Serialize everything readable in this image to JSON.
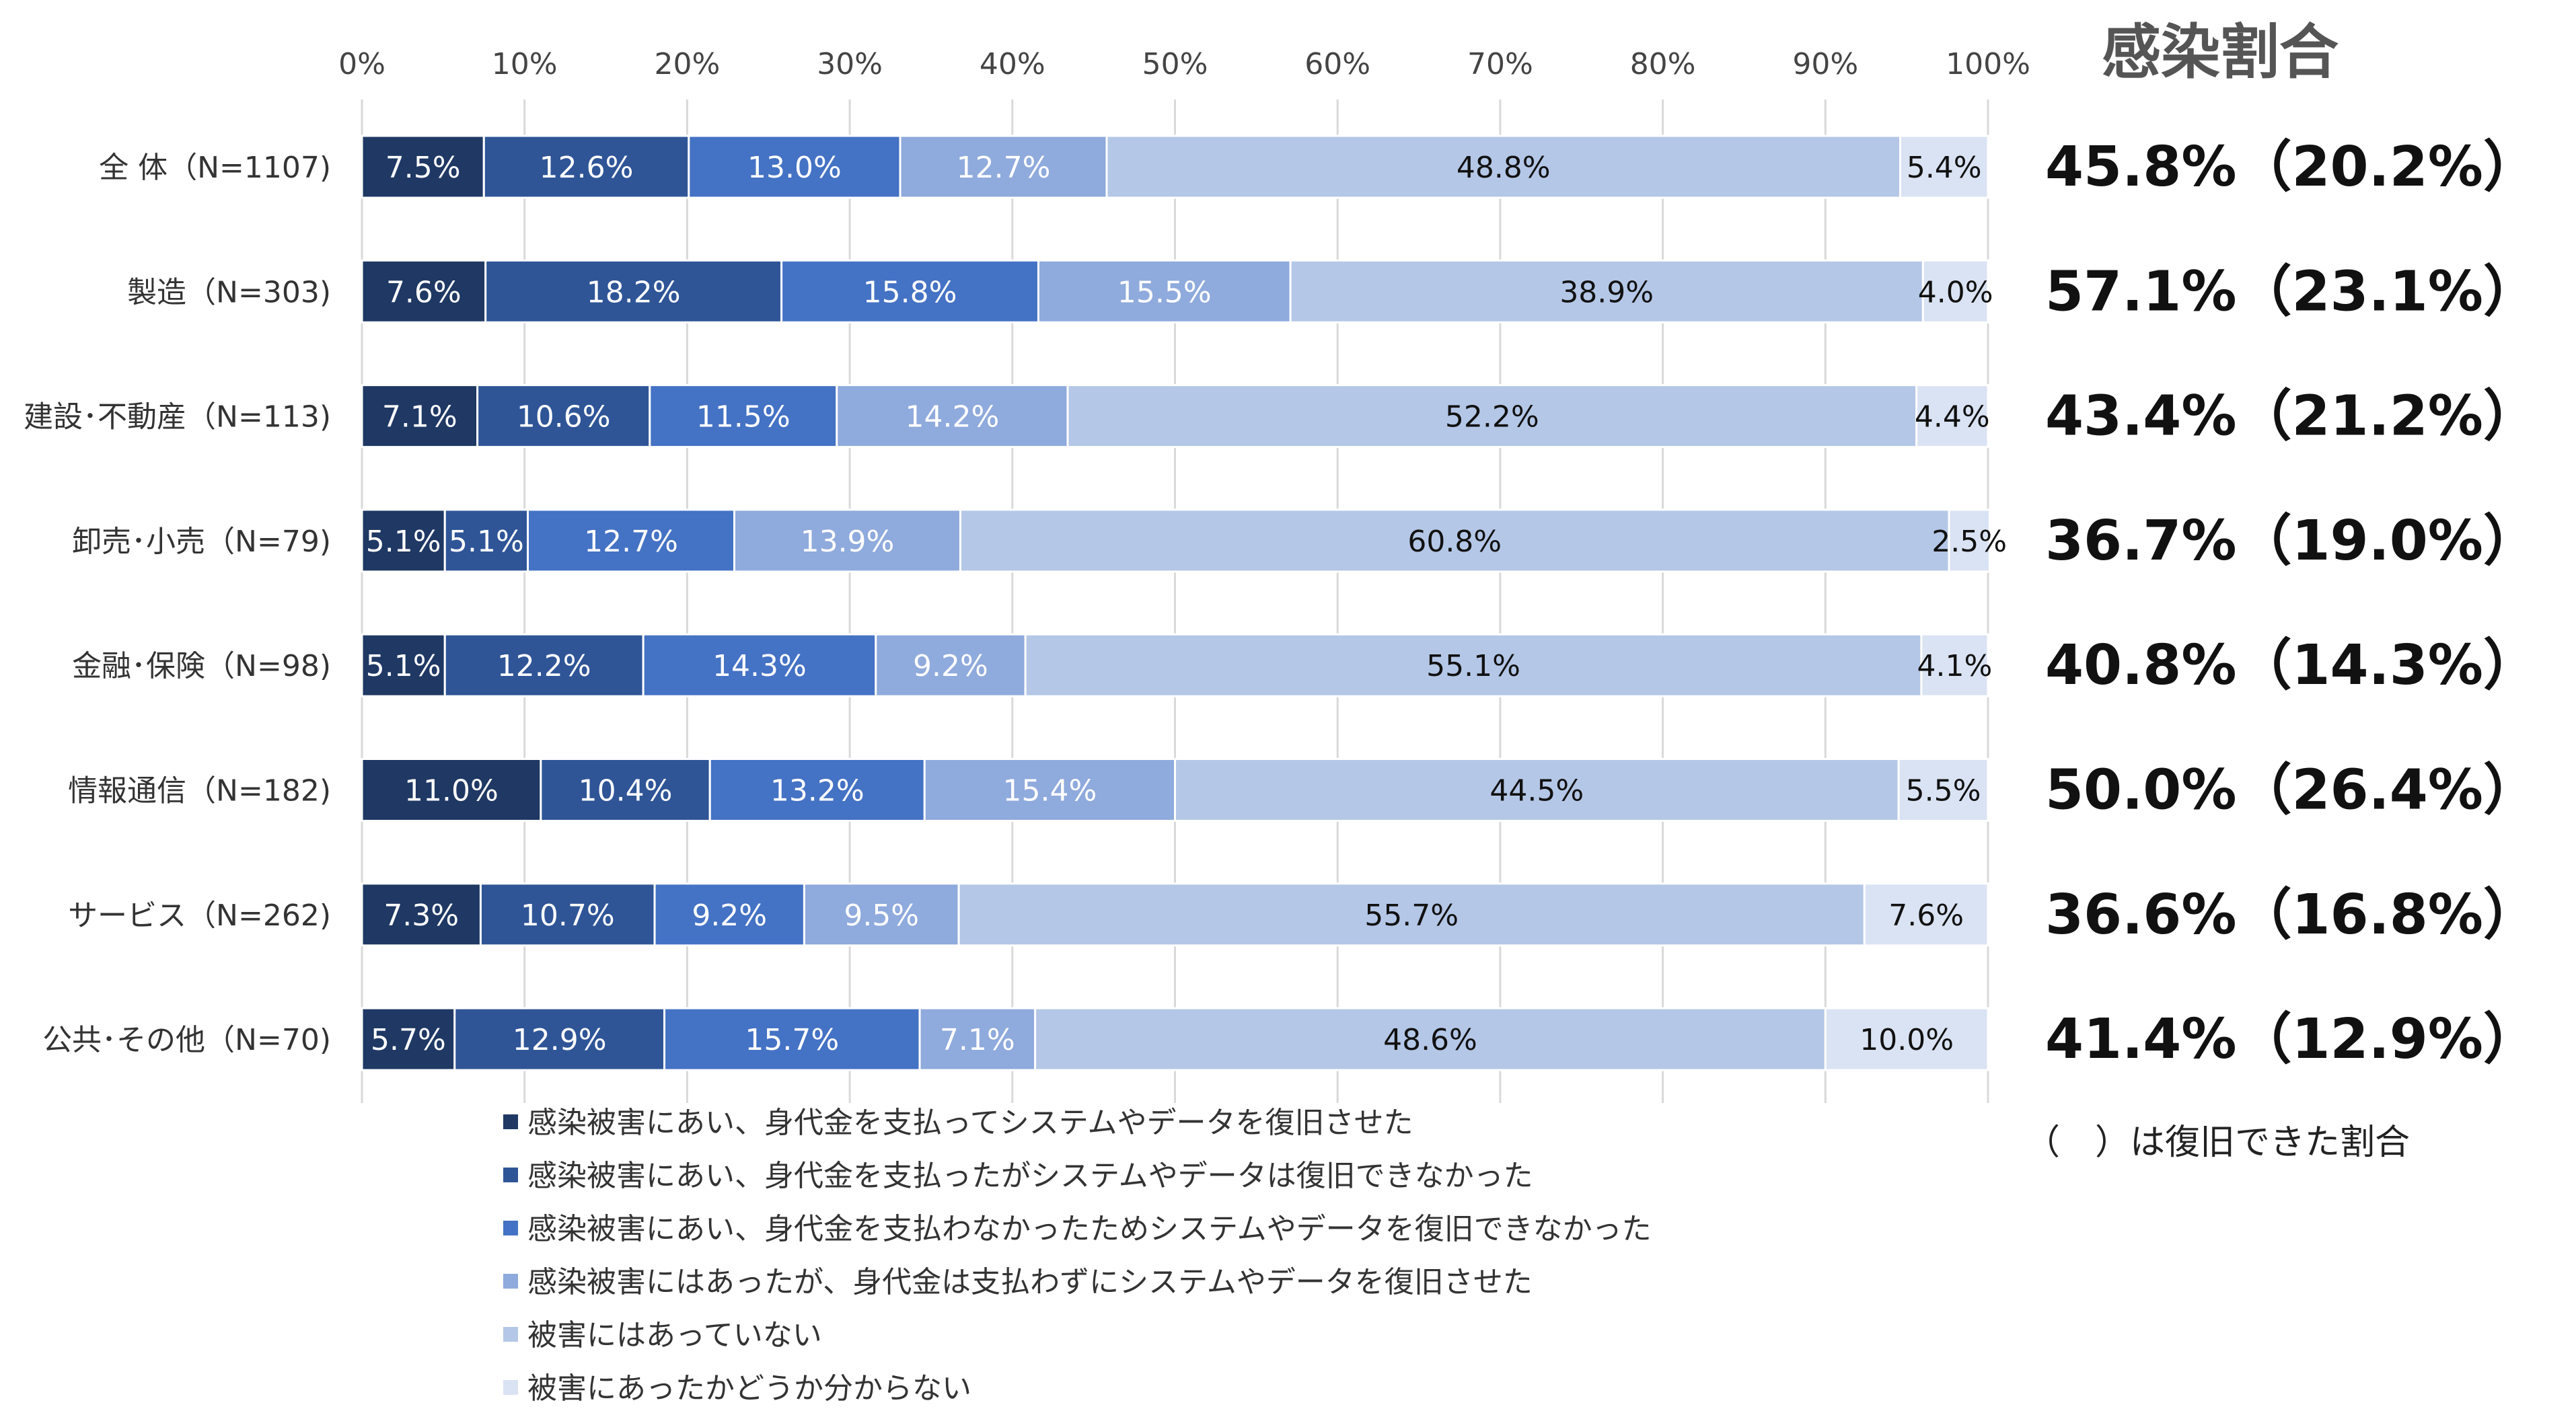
{
  "chart_data": {
    "type": "bar",
    "orientation": "horizontal",
    "stacked": true,
    "xlim": [
      0,
      100
    ],
    "x_ticks": [
      "0%",
      "10%",
      "20%",
      "30%",
      "40%",
      "50%",
      "60%",
      "70%",
      "80%",
      "90%",
      "100%"
    ],
    "categories": [
      "全 体（N=1107)",
      "製造（N=303)",
      "建設･不動産（N=113)",
      "卸売･小売（N=79)",
      "金融･保険（N=98)",
      "情報通信（N=182)",
      "サービス（N=262)",
      "公共･その他（N=70)"
    ],
    "series": [
      {
        "name": "感染被害にあい、身代金を支払ってシステムやデータを復旧させた",
        "color": "#1f3864",
        "label_color": "#ffffff",
        "values": [
          7.5,
          7.6,
          7.1,
          5.1,
          5.1,
          11.0,
          7.3,
          5.7
        ],
        "labels": [
          "7.5%",
          "7.6%",
          "7.1%",
          "5.1%",
          "5.1%",
          "11.0%",
          "7.3%",
          "5.7%"
        ]
      },
      {
        "name": "感染被害にあい、身代金を支払ったがシステムやデータは復旧できなかった",
        "color": "#2f5597",
        "label_color": "#ffffff",
        "values": [
          12.6,
          18.2,
          10.6,
          5.1,
          12.2,
          10.4,
          10.7,
          12.9
        ],
        "labels": [
          "12.6%",
          "18.2%",
          "10.6%",
          "5.1%",
          "12.2%",
          "10.4%",
          "10.7%",
          "12.9%"
        ]
      },
      {
        "name": "感染被害にあい、身代金を支払わなかったためシステムやデータを復旧できなかった",
        "color": "#4472c4",
        "label_color": "#ffffff",
        "values": [
          13.0,
          15.8,
          11.5,
          12.7,
          14.3,
          13.2,
          9.2,
          15.7
        ],
        "labels": [
          "13.0%",
          "15.8%",
          "11.5%",
          "12.7%",
          "14.3%",
          "13.2%",
          "9.2%",
          "15.7%"
        ]
      },
      {
        "name": "感染被害にはあったが、身代金は支払わずにシステムやデータを復旧させた",
        "color": "#8faadc",
        "label_color": "#ffffff",
        "values": [
          12.7,
          15.5,
          14.2,
          13.9,
          9.2,
          15.4,
          9.5,
          7.1
        ],
        "labels": [
          "12.7%",
          "15.5%",
          "14.2%",
          "13.9%",
          "9.2%",
          "15.4%",
          "9.5%",
          "7.1%"
        ]
      },
      {
        "name": "被害にはあっていない",
        "color": "#b4c7e7",
        "label_color": "#111111",
        "values": [
          48.8,
          38.9,
          52.2,
          60.8,
          55.1,
          44.5,
          55.7,
          48.6
        ],
        "labels": [
          "48.8%",
          "38.9%",
          "52.2%",
          "60.8%",
          "55.1%",
          "44.5%",
          "55.7%",
          "48.6%"
        ]
      },
      {
        "name": "被害にあったかどうか分からない",
        "color": "#dae3f3",
        "label_color": "#111111",
        "values": [
          5.4,
          4.0,
          4.4,
          2.5,
          4.1,
          5.5,
          7.6,
          10.0
        ],
        "labels": [
          "5.4%",
          "4.0%",
          "4.4%",
          "2.5%",
          "4.1%",
          "5.5%",
          "7.6%",
          "10.0%"
        ]
      }
    ],
    "side_title": "感染割合",
    "infection_rates": [
      "45.8%（20.2%）",
      "57.1%（23.1%）",
      "43.4%（21.2%）",
      "36.7%（19.0%）",
      "40.8%（14.3%）",
      "50.0%（26.4%）",
      "36.6%（16.8%）",
      "41.4%（12.9%）"
    ],
    "note": "（　）は復旧できた割合",
    "grid": true,
    "legend_position": "bottom"
  }
}
